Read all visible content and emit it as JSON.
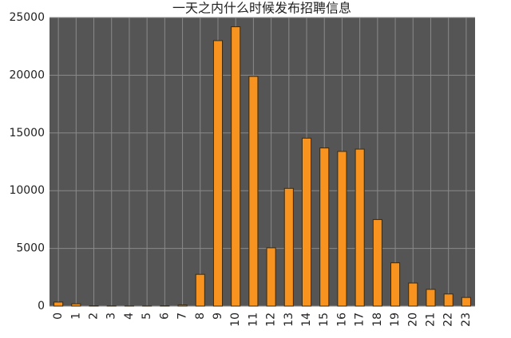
{
  "chart_data": {
    "type": "bar",
    "title": "一天之内什么时候发布招聘信息",
    "categories": [
      "0",
      "1",
      "2",
      "3",
      "4",
      "5",
      "6",
      "7",
      "8",
      "9",
      "10",
      "11",
      "12",
      "13",
      "14",
      "15",
      "16",
      "17",
      "18",
      "19",
      "20",
      "21",
      "22",
      "23"
    ],
    "values": [
      350,
      200,
      30,
      20,
      10,
      10,
      30,
      100,
      2750,
      23000,
      24200,
      19900,
      5050,
      10200,
      14550,
      13700,
      13400,
      13600,
      7500,
      3750,
      2000,
      1450,
      1050,
      750
    ],
    "color": "#f7931e",
    "ylim": [
      0,
      25000
    ],
    "yticks": [
      0,
      5000,
      10000,
      15000,
      20000,
      25000
    ],
    "grid": true
  }
}
